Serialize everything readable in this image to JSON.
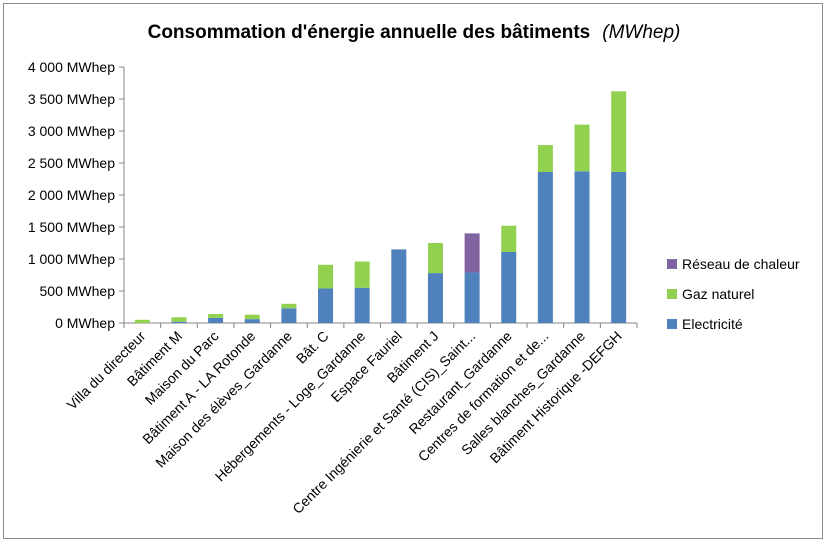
{
  "chart_data": {
    "type": "bar",
    "stacked": true,
    "title": "Consommation d'énergie annuelle des bâtiments",
    "title_unit": "(MWhep)",
    "xlabel": "",
    "ylabel": "",
    "ylim": [
      0,
      4000
    ],
    "y_ticks": [
      0,
      500,
      1000,
      1500,
      2000,
      2500,
      3000,
      3500,
      4000
    ],
    "y_tick_labels": [
      "0 MWhep",
      "500 MWhep",
      "1 000 MWhep",
      "1 500 MWhep",
      "2 000 MWhep",
      "2 500 MWhep",
      "3 000 MWhep",
      "3 500 MWhep",
      "4 000 MWhep"
    ],
    "grid": false,
    "legend_position": "right",
    "categories": [
      "Villa du directeur",
      "Bâtiment M",
      "Maison du Parc",
      "Bâtiment A - LA Rotonde",
      "Maison des élèves_Gardanne",
      "Bât. C",
      "Hébergements - Loge_Gardanne",
      "Espace Fauriel",
      "Bâtiment J",
      "Centre Ingénierie et Santé (CIS)_Saint...",
      "Restaurant_Gardanne",
      "Centres de formation et de...",
      "Salles blanches_Gardanne",
      "Bâtiment Historique -DEFGH"
    ],
    "series": [
      {
        "name": "Electricité",
        "color": "#4f81bd",
        "values": [
          0,
          20,
          80,
          60,
          230,
          540,
          550,
          1150,
          780,
          790,
          1110,
          2360,
          2370,
          2360
        ]
      },
      {
        "name": "Gaz naturel",
        "color": "#92d050",
        "values": [
          50,
          70,
          60,
          70,
          70,
          370,
          410,
          0,
          470,
          0,
          410,
          420,
          730,
          1260
        ]
      },
      {
        "name": "Réseau de chaleur",
        "color": "#8064a2",
        "values": [
          0,
          0,
          0,
          0,
          0,
          0,
          0,
          0,
          0,
          610,
          0,
          0,
          0,
          0
        ]
      }
    ],
    "legend_order": [
      "Réseau de chaleur",
      "Gaz naturel",
      "Electricité"
    ]
  }
}
